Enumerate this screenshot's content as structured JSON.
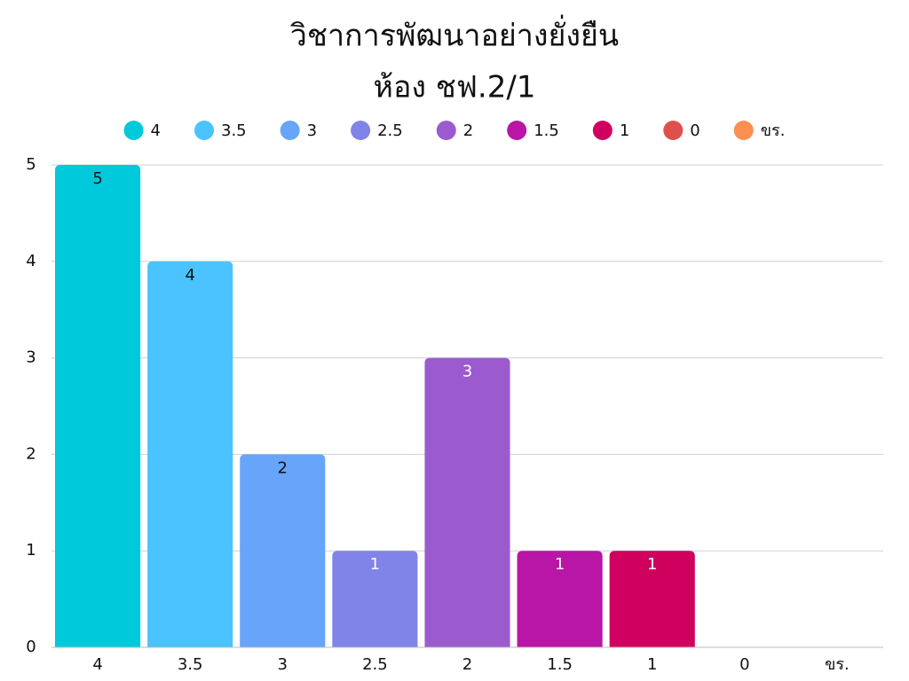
{
  "chart_data": {
    "type": "bar",
    "title": "วิชาการพัฒนาอย่างยั่งยืน",
    "subtitle": "ห้อง ชฟ.2/1",
    "categories": [
      "4",
      "3.5",
      "3",
      "2.5",
      "2",
      "1.5",
      "1",
      "0",
      "ขร."
    ],
    "values": [
      5,
      4,
      2,
      1,
      3,
      1,
      1,
      0,
      0
    ],
    "colors": [
      "#00c9dc",
      "#4ac3ff",
      "#66a5fa",
      "#8083e8",
      "#9b5bce",
      "#b915a6",
      "#d0005e",
      "#e0504a",
      "#f99052"
    ],
    "label_colors": [
      "#111111",
      "#111111",
      "#111111",
      "#ffffff",
      "#ffffff",
      "#ffffff",
      "#ffffff",
      "#ffffff",
      "#ffffff"
    ],
    "ylim": [
      0,
      5
    ],
    "yticks": [
      0,
      1,
      2,
      3,
      4,
      5
    ],
    "grid": true,
    "legend": "top"
  }
}
